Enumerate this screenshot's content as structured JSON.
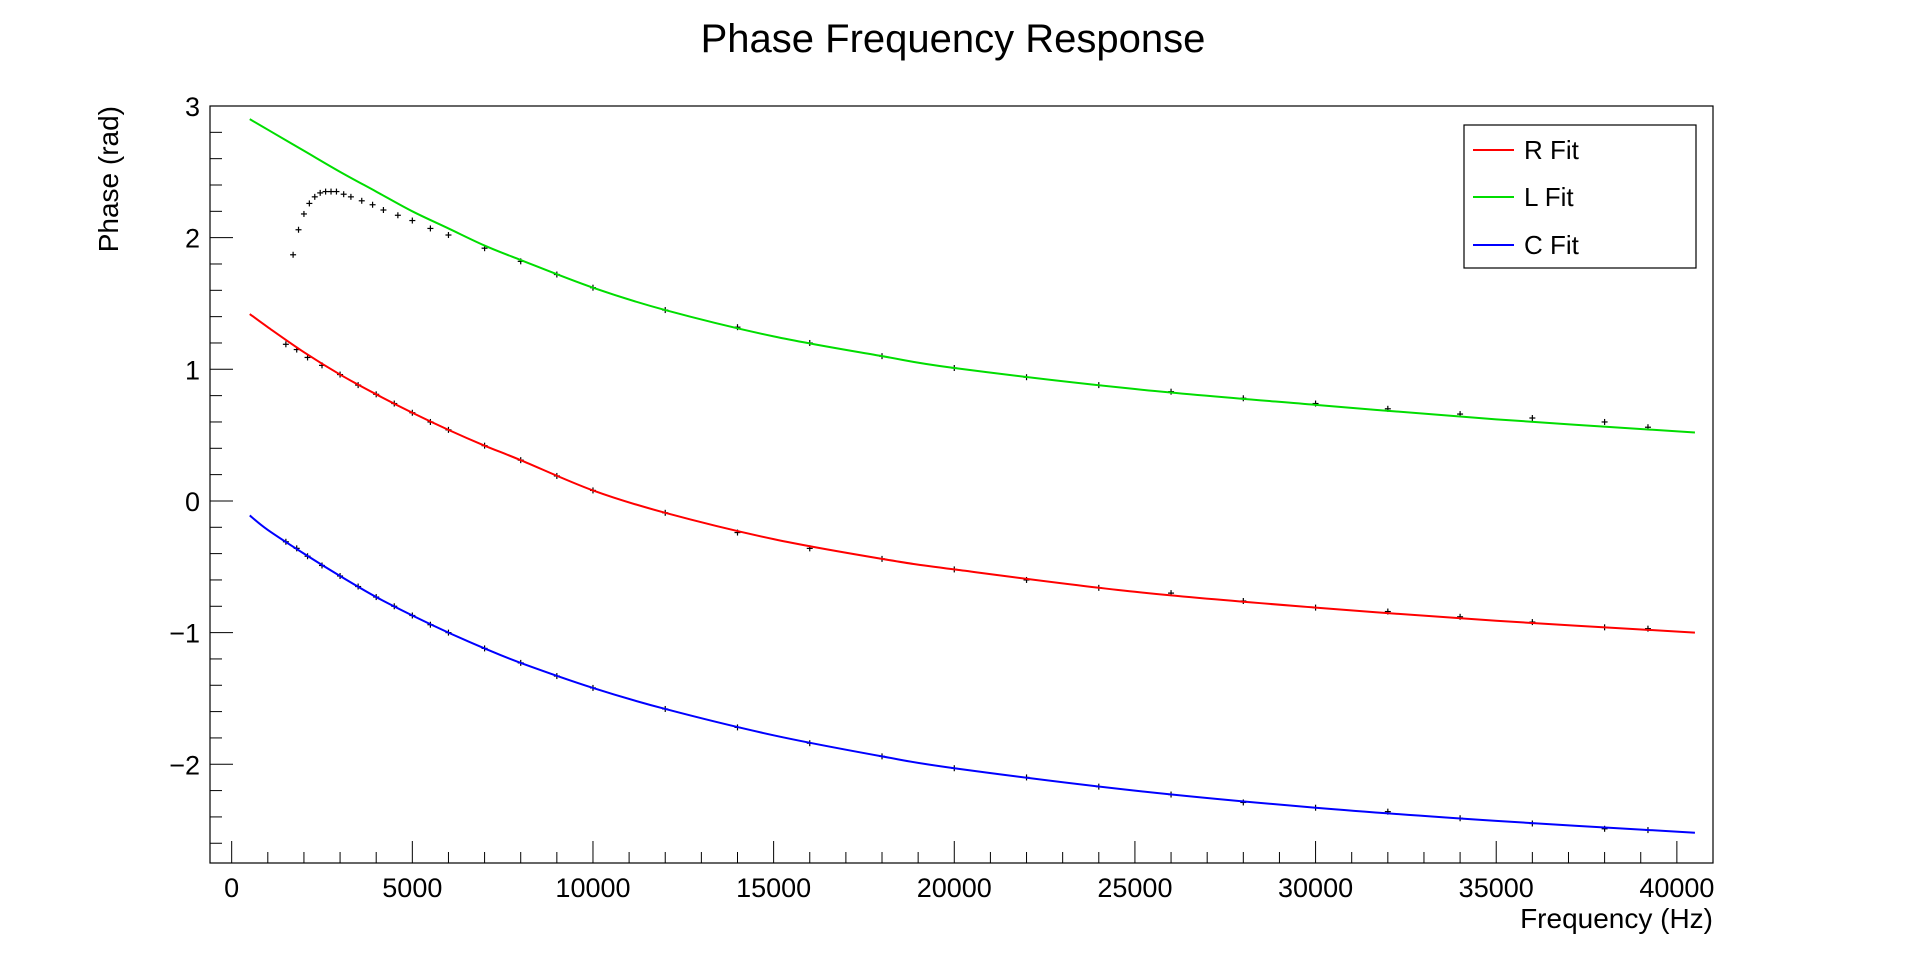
{
  "chart_data": {
    "type": "line",
    "title": "Phase Frequency Response",
    "xlabel": "Frequency (Hz)",
    "ylabel": "Phase (rad)",
    "xlim": [
      -600,
      41000
    ],
    "ylim": [
      -2.75,
      3.0
    ],
    "xticks": [
      0,
      5000,
      10000,
      15000,
      20000,
      25000,
      30000,
      35000,
      40000
    ],
    "xtick_labels": [
      "0",
      "5000",
      "10000",
      "15000",
      "20000",
      "25000",
      "30000",
      "35000",
      "40000"
    ],
    "yticks": [
      -2,
      -1,
      0,
      1,
      2,
      3
    ],
    "ytick_labels": [
      "−2",
      "−1",
      "0",
      "1",
      "2",
      "3"
    ],
    "grid": false,
    "legend_position": "top-right",
    "series": [
      {
        "name": "R Fit",
        "color": "#ff0000",
        "x": [
          500,
          1000,
          2000,
          3000,
          4000,
          5000,
          6000,
          7000,
          8000,
          10000,
          12000,
          15000,
          18000,
          20000,
          25000,
          30000,
          35000,
          40500
        ],
        "y": [
          1.42,
          1.32,
          1.13,
          0.96,
          0.81,
          0.67,
          0.54,
          0.42,
          0.31,
          0.08,
          -0.09,
          -0.29,
          -0.44,
          -0.52,
          -0.69,
          -0.81,
          -0.91,
          -1.0
        ]
      },
      {
        "name": "L Fit",
        "color": "#00dd00",
        "x": [
          500,
          1000,
          2000,
          3000,
          4000,
          5000,
          6000,
          7000,
          8000,
          10000,
          12000,
          15000,
          18000,
          20000,
          25000,
          30000,
          35000,
          40500
        ],
        "y": [
          2.9,
          2.82,
          2.66,
          2.5,
          2.35,
          2.2,
          2.07,
          1.94,
          1.83,
          1.62,
          1.45,
          1.25,
          1.1,
          1.01,
          0.85,
          0.73,
          0.62,
          0.52
        ]
      },
      {
        "name": "C Fit",
        "color": "#0000ff",
        "x": [
          500,
          1000,
          2000,
          3000,
          4000,
          5000,
          6000,
          7000,
          8000,
          10000,
          12000,
          15000,
          18000,
          20000,
          25000,
          30000,
          35000,
          40500
        ],
        "y": [
          -0.11,
          -0.22,
          -0.4,
          -0.57,
          -0.73,
          -0.87,
          -1.0,
          -1.12,
          -1.23,
          -1.42,
          -1.58,
          -1.78,
          -1.94,
          -2.03,
          -2.2,
          -2.33,
          -2.43,
          -2.52
        ]
      }
    ],
    "data_points": {
      "color": "#000000",
      "groups": [
        {
          "x": [
            1700,
            1850,
            2000,
            2150,
            2300,
            2450,
            2600,
            2750,
            2900,
            3100,
            3300,
            3600,
            3900,
            4200,
            4600,
            5000,
            5500,
            6000,
            7000,
            8000,
            9000,
            10000,
            12000,
            14000,
            16000,
            18000,
            20000,
            22000,
            24000,
            26000,
            28000,
            30000,
            32000,
            34000,
            36000,
            38000,
            39200
          ],
          "y": [
            1.87,
            2.06,
            2.18,
            2.26,
            2.31,
            2.34,
            2.35,
            2.35,
            2.35,
            2.33,
            2.31,
            2.28,
            2.25,
            2.21,
            2.17,
            2.13,
            2.07,
            2.02,
            1.92,
            1.82,
            1.72,
            1.62,
            1.45,
            1.32,
            1.2,
            1.1,
            1.01,
            0.94,
            0.88,
            0.83,
            0.78,
            0.74,
            0.7,
            0.66,
            0.63,
            0.6,
            0.56
          ]
        },
        {
          "x": [
            1500,
            1800,
            2100,
            2500,
            3000,
            3500,
            4000,
            4500,
            5000,
            5500,
            6000,
            7000,
            8000,
            9000,
            10000,
            12000,
            14000,
            16000,
            18000,
            20000,
            22000,
            24000,
            26000,
            28000,
            30000,
            32000,
            34000,
            36000,
            38000,
            39200
          ],
          "y": [
            1.19,
            1.15,
            1.09,
            1.03,
            0.96,
            0.88,
            0.81,
            0.74,
            0.67,
            0.6,
            0.54,
            0.42,
            0.31,
            0.19,
            0.08,
            -0.09,
            -0.24,
            -0.36,
            -0.44,
            -0.52,
            -0.6,
            -0.66,
            -0.7,
            -0.76,
            -0.81,
            -0.84,
            -0.88,
            -0.92,
            -0.96,
            -0.97
          ]
        },
        {
          "x": [
            1500,
            1800,
            2100,
            2500,
            3000,
            3500,
            4000,
            4500,
            5000,
            5500,
            6000,
            7000,
            8000,
            9000,
            10000,
            12000,
            14000,
            16000,
            18000,
            20000,
            22000,
            24000,
            26000,
            28000,
            30000,
            32000,
            34000,
            36000,
            38000,
            39200
          ],
          "y": [
            -0.31,
            -0.36,
            -0.42,
            -0.49,
            -0.57,
            -0.65,
            -0.73,
            -0.8,
            -0.87,
            -0.94,
            -1.0,
            -1.12,
            -1.23,
            -1.33,
            -1.42,
            -1.58,
            -1.72,
            -1.84,
            -1.94,
            -2.03,
            -2.1,
            -2.17,
            -2.23,
            -2.29,
            -2.33,
            -2.36,
            -2.41,
            -2.45,
            -2.49,
            -2.5
          ]
        }
      ]
    }
  }
}
